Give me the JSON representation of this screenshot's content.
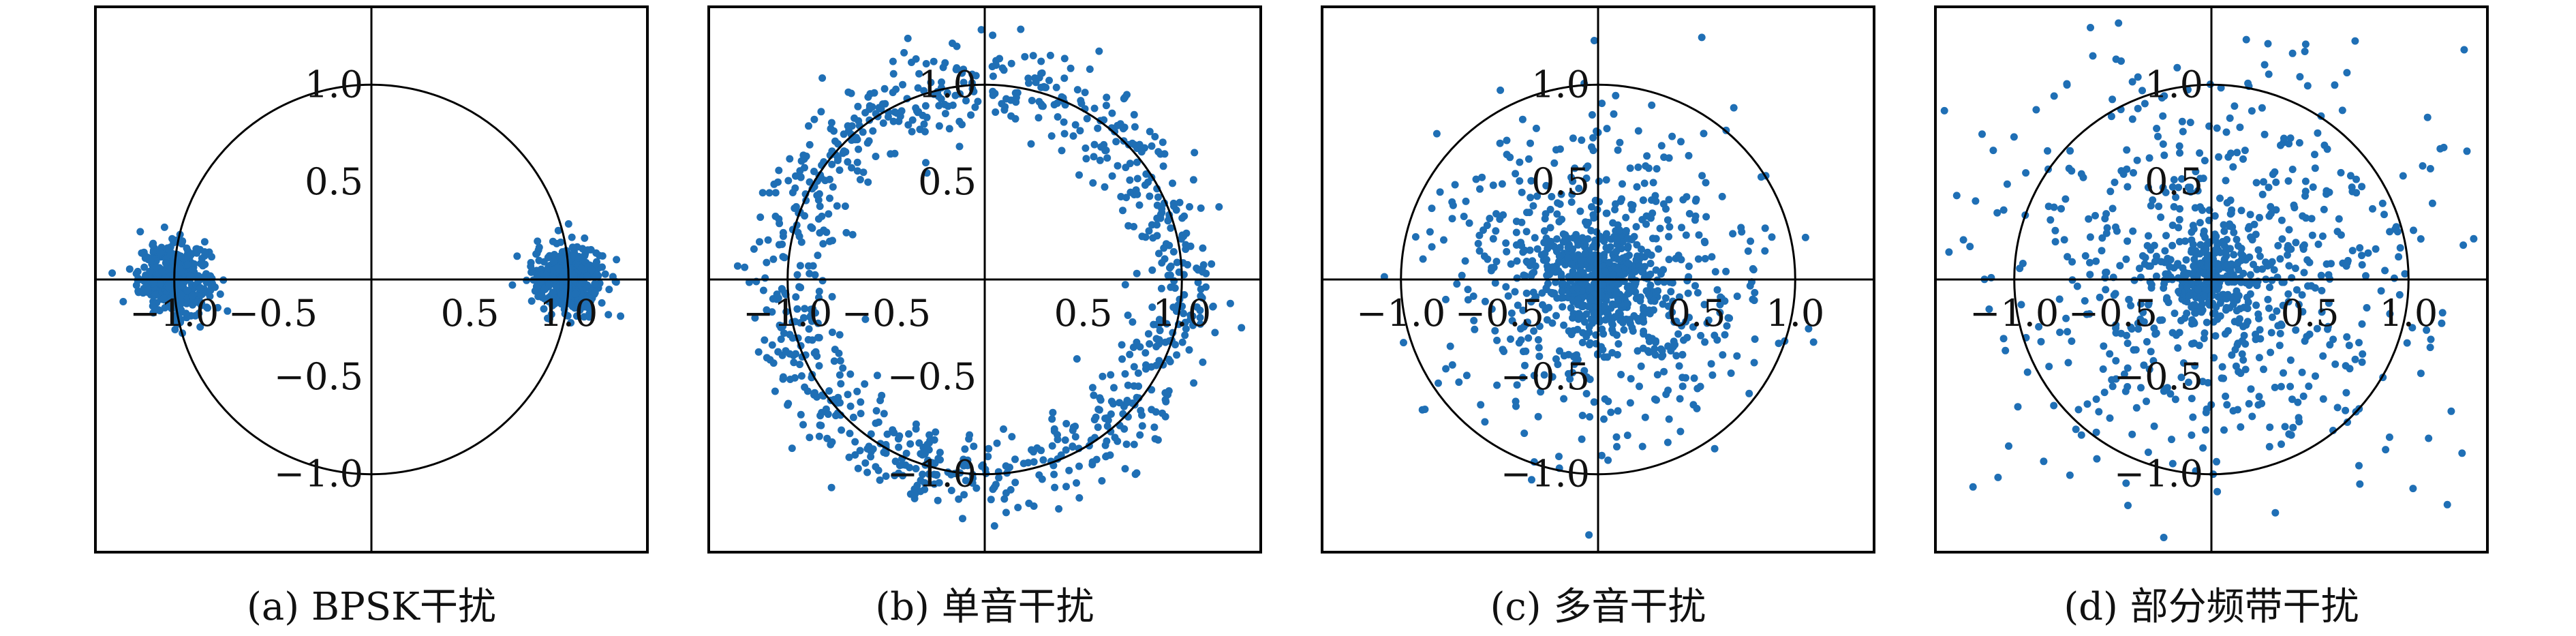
{
  "chart_data": [
    {
      "type": "scatter",
      "caption": "(a) BPSK干扰",
      "x_ticks": [
        "−1.0",
        "−0.5",
        "0.5",
        "1.0"
      ],
      "y_ticks": [
        "1.0",
        "0.5",
        "−0.5",
        "−1.0"
      ],
      "xlim": [
        -1.4,
        1.4
      ],
      "ylim": [
        -1.4,
        1.4
      ],
      "unit_circle": true,
      "marker_color": "#1f6fb5",
      "clusters": [
        {
          "center": [
            -1.0,
            0.0
          ],
          "spread": 0.09,
          "count": 420
        },
        {
          "center": [
            1.0,
            0.0
          ],
          "spread": 0.09,
          "count": 420
        }
      ]
    },
    {
      "type": "scatter",
      "caption": "(b) 单音干扰",
      "x_ticks": [
        "−1.0",
        "−0.5",
        "0.5",
        "1.0"
      ],
      "y_ticks": [
        "1.0",
        "0.5",
        "−0.5",
        "−1.0"
      ],
      "xlim": [
        -1.4,
        1.4
      ],
      "ylim": [
        -1.4,
        1.4
      ],
      "unit_circle": true,
      "marker_color": "#1f6fb5",
      "rings": [
        {
          "radius": 1.0,
          "spread": 0.12,
          "count": 900
        }
      ]
    },
    {
      "type": "scatter",
      "caption": "(c) 多音干扰",
      "x_ticks": [
        "−1.0",
        "−0.5",
        "0.5",
        "1.0"
      ],
      "y_ticks": [
        "1.0",
        "0.5",
        "−0.5",
        "−1.0"
      ],
      "xlim": [
        -1.4,
        1.4
      ],
      "ylim": [
        -1.4,
        1.4
      ],
      "unit_circle": true,
      "marker_color": "#1f6fb5",
      "clusters": [
        {
          "center": [
            0.0,
            0.0
          ],
          "spread": 0.12,
          "count": 300
        },
        {
          "center": [
            0.0,
            0.0
          ],
          "spread": 0.38,
          "count": 700
        }
      ]
    },
    {
      "type": "scatter",
      "caption": "(d) 部分频带干扰",
      "x_ticks": [
        "−1.0",
        "−0.5",
        "0.5",
        "1.0"
      ],
      "y_ticks": [
        "1.0",
        "0.5",
        "−0.5",
        "−1.0"
      ],
      "xlim": [
        -1.4,
        1.4
      ],
      "ylim": [
        -1.4,
        1.4
      ],
      "unit_circle": true,
      "marker_color": "#1f6fb5",
      "clusters": [
        {
          "center": [
            0.0,
            0.0
          ],
          "spread": 0.12,
          "count": 250
        },
        {
          "center": [
            0.0,
            0.0
          ],
          "spread": 0.55,
          "count": 650
        }
      ]
    }
  ]
}
